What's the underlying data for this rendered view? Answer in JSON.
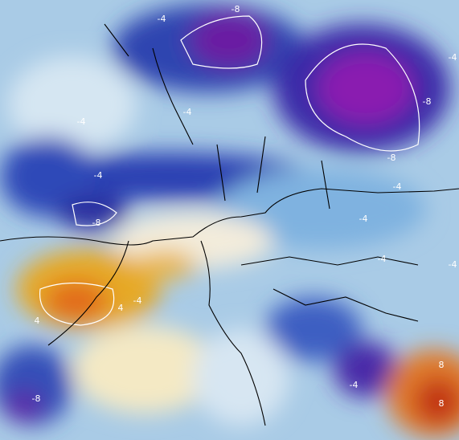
{
  "contour_labels": [
    "-8",
    "-4",
    "-4",
    "-4",
    "-4",
    "-8",
    "-8",
    "-4",
    "-4",
    "-4",
    "-4",
    "-4",
    "4",
    "4",
    "-4",
    "-8",
    "-8",
    "8",
    "8",
    "-4"
  ]
}
